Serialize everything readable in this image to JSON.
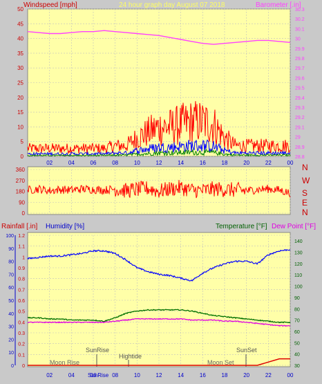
{
  "header": {
    "left_label": "Windspeed [mph]",
    "center_label": "24 hour graph day   August 07 2018",
    "right_label": "Barometer [.in]"
  },
  "colors": {
    "panel_bg": "#ffffa8",
    "window_bg": "#c9c9c9",
    "grid": "#c0c0c0",
    "wind": "#ff0000",
    "gust_mid": "#0000ff",
    "gust_low": "#008000",
    "barometer": "#ff40ff",
    "humidity": "#0000ff",
    "temperature": "#007000",
    "dewpoint": "#e000e0",
    "rain": "#dd0000",
    "header_yellow": "#ffff60"
  },
  "x_ticks": [
    "02",
    "04",
    "06",
    "08",
    "10",
    "12",
    "14",
    "16",
    "18",
    "20",
    "22",
    "00"
  ],
  "wind_panel": {
    "left_ticks": [
      "0",
      "5",
      "10",
      "15",
      "20",
      "25",
      "30",
      "35",
      "40",
      "45",
      "50"
    ],
    "right_ticks": [
      "28.8",
      "28.9",
      "29",
      "29.1",
      "29.2",
      "29.3",
      "29.4",
      "29.5",
      "29.6",
      "29.7",
      "29.8",
      "29.9",
      "30",
      "30.1",
      "30.2",
      "30.3"
    ]
  },
  "dir_panel": {
    "ticks": [
      "360",
      "270",
      "180",
      "90",
      "0"
    ],
    "compass": [
      "N",
      "W",
      "S",
      "E",
      "N"
    ]
  },
  "env_panel": {
    "labels": {
      "rain": "Rainfall [.in]",
      "humidity": "Humidity [%]",
      "temperature": "Temperature [°F]",
      "dewpoint": "Dew Point [°F]"
    },
    "humidity_ticks": [
      "0",
      "10",
      "20",
      "30",
      "40",
      "50",
      "60",
      "70",
      "80",
      "90",
      "100"
    ],
    "rain_ticks": [
      "0",
      "0.1",
      "0.2",
      "0.3",
      "0.4",
      "0.5",
      "0.6",
      "0.7",
      "0.8",
      "0.9",
      "1",
      "1.1",
      "1.2"
    ],
    "temp_ticks": [
      "30",
      "40",
      "50",
      "60",
      "70",
      "80",
      "90",
      "100",
      "110",
      "120",
      "130",
      "140"
    ],
    "events": {
      "moon_rise": "Moon Rise",
      "sunrise": "SunRise",
      "hightide": "Hightide",
      "moon_set": "Moon Set",
      "sunset": "SunSet",
      "sunrise_bottom": "SunRise"
    }
  },
  "chart_data": [
    {
      "type": "line",
      "x": [
        0,
        1,
        2,
        3,
        4,
        5,
        6,
        7,
        8,
        9,
        10,
        11,
        12,
        13,
        14,
        15,
        16,
        17,
        18,
        19,
        20,
        21,
        22,
        23,
        24
      ],
      "series": [
        {
          "name": "Windspeed",
          "axis": "left",
          "values": [
            3,
            3,
            3,
            3,
            3,
            3,
            3,
            3,
            4,
            4,
            7,
            9,
            11,
            11,
            12,
            13,
            13,
            12,
            7,
            4,
            4,
            4,
            4,
            4,
            4
          ]
        },
        {
          "name": "Barometer",
          "axis": "right",
          "values": [
            30.07,
            30.06,
            30.05,
            30.05,
            30.06,
            30.07,
            30.07,
            30.08,
            30.07,
            30.06,
            30.05,
            30.04,
            30.03,
            30.01,
            29.99,
            29.97,
            29.95,
            29.94,
            29.95,
            29.96,
            29.97,
            29.98,
            29.98,
            29.97,
            29.96
          ]
        }
      ],
      "ylim_left": [
        0,
        50
      ],
      "ylim_right": [
        28.8,
        30.3
      ]
    },
    {
      "type": "line",
      "x": [
        0,
        1,
        2,
        3,
        4,
        5,
        6,
        7,
        8,
        9,
        10,
        11,
        12,
        13,
        14,
        15,
        16,
        17,
        18,
        19,
        20,
        21,
        22,
        23,
        24
      ],
      "series": [
        {
          "name": "Wind Direction",
          "values": [
            190,
            200,
            185,
            195,
            190,
            200,
            195,
            190,
            200,
            185,
            195,
            205,
            180,
            200,
            210,
            190,
            185,
            200,
            195,
            190,
            185,
            195,
            200,
            190,
            165
          ]
        }
      ],
      "ylim": [
        0,
        360
      ]
    },
    {
      "type": "line",
      "x": [
        0,
        1,
        2,
        3,
        4,
        5,
        6,
        7,
        8,
        9,
        10,
        11,
        12,
        13,
        14,
        15,
        16,
        17,
        18,
        19,
        20,
        21,
        22,
        23,
        24
      ],
      "series": [
        {
          "name": "Humidity",
          "axis": "humidity",
          "values": [
            82,
            83,
            84,
            84,
            85,
            86,
            88,
            88,
            86,
            81,
            75,
            72,
            70,
            69,
            67,
            65,
            71,
            75,
            78,
            80,
            80,
            78,
            85,
            88,
            89
          ]
        },
        {
          "name": "Temperature",
          "axis": "temp",
          "values": [
            72,
            72,
            71,
            71,
            70,
            70,
            70,
            69,
            72,
            76,
            78,
            79,
            79,
            79,
            79,
            78,
            76,
            74,
            73,
            72,
            71,
            70,
            69,
            68,
            68
          ]
        },
        {
          "name": "Dew Point",
          "axis": "temp",
          "values": [
            68,
            68,
            68,
            68,
            68,
            68,
            68,
            68,
            69,
            70,
            71,
            71,
            71,
            71,
            71,
            70,
            70,
            70,
            69,
            69,
            68,
            67,
            66,
            65,
            65
          ]
        },
        {
          "name": "Rainfall",
          "axis": "rain",
          "values": [
            0,
            0,
            0,
            0,
            0,
            0,
            0,
            0,
            0,
            0,
            0,
            0,
            0,
            0,
            0,
            0,
            0,
            0,
            0,
            0,
            0,
            0,
            0.03,
            0.06,
            0.06
          ]
        }
      ],
      "ylim_humidity": [
        0,
        100
      ],
      "ylim_rain": [
        0,
        1.2
      ],
      "ylim_temp": [
        30,
        145
      ]
    }
  ]
}
